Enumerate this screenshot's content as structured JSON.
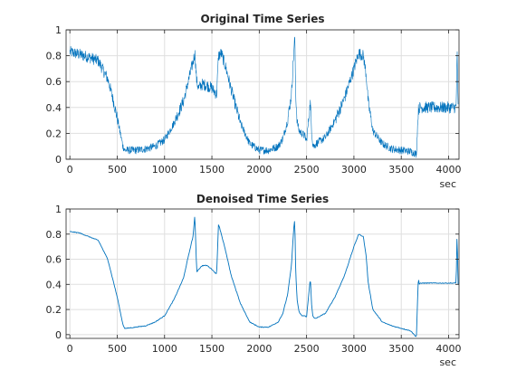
{
  "chart_data": [
    {
      "type": "line",
      "title": "Original Time Series",
      "xlabel": "sec",
      "ylabel": "",
      "xlim": [
        -40,
        4110
      ],
      "ylim": [
        0,
        1
      ],
      "xticks": [
        0,
        500,
        1000,
        1500,
        2000,
        2500,
        3000,
        3500,
        4000
      ],
      "yticks": [
        0,
        0.2,
        0.4,
        0.6,
        0.8,
        1
      ],
      "grid": true,
      "noise": "high",
      "series": [
        {
          "color": "#0072BD",
          "x": [
            0,
            100,
            200,
            300,
            400,
            450,
            500,
            560,
            580,
            600,
            700,
            800,
            900,
            1000,
            1100,
            1200,
            1250,
            1300,
            1320,
            1340,
            1360,
            1400,
            1450,
            1500,
            1550,
            1570,
            1600,
            1650,
            1700,
            1800,
            1900,
            2000,
            2100,
            2200,
            2250,
            2300,
            2340,
            2365,
            2375,
            2385,
            2400,
            2420,
            2450,
            2480,
            2500,
            2520,
            2540,
            2555,
            2565,
            2580,
            2600,
            2700,
            2800,
            2900,
            3000,
            3050,
            3100,
            3130,
            3150,
            3200,
            3300,
            3400,
            3500,
            3600,
            3660,
            3680,
            3690,
            3700,
            3800,
            3900,
            4000,
            4080,
            4090,
            4100
          ],
          "y": [
            0.83,
            0.81,
            0.79,
            0.76,
            0.62,
            0.48,
            0.32,
            0.1,
            0.07,
            0.07,
            0.07,
            0.08,
            0.1,
            0.15,
            0.28,
            0.45,
            0.6,
            0.75,
            0.82,
            0.6,
            0.55,
            0.58,
            0.57,
            0.55,
            0.5,
            0.8,
            0.82,
            0.7,
            0.55,
            0.28,
            0.12,
            0.07,
            0.07,
            0.1,
            0.16,
            0.3,
            0.5,
            0.82,
            0.95,
            0.5,
            0.3,
            0.22,
            0.2,
            0.18,
            0.14,
            0.3,
            0.44,
            0.2,
            0.12,
            0.1,
            0.12,
            0.17,
            0.3,
            0.47,
            0.7,
            0.82,
            0.8,
            0.65,
            0.45,
            0.22,
            0.12,
            0.08,
            0.07,
            0.06,
            0.04,
            0.38,
            0.4,
            0.4,
            0.4,
            0.4,
            0.4,
            0.4,
            0.85,
            0.4
          ]
        }
      ]
    },
    {
      "type": "line",
      "title": "Denoised Time Series",
      "xlabel": "sec",
      "ylabel": "",
      "xlim": [
        -40,
        4110
      ],
      "ylim": [
        -0.03,
        1
      ],
      "xticks": [
        0,
        500,
        1000,
        1500,
        2000,
        2500,
        3000,
        3500,
        4000
      ],
      "yticks": [
        0,
        0.2,
        0.4,
        0.6,
        0.8,
        1
      ],
      "grid": true,
      "noise": "low",
      "series": [
        {
          "color": "#0072BD",
          "x": [
            0,
            100,
            200,
            300,
            400,
            450,
            500,
            560,
            580,
            600,
            700,
            800,
            900,
            1000,
            1100,
            1200,
            1250,
            1300,
            1320,
            1340,
            1360,
            1400,
            1450,
            1500,
            1550,
            1570,
            1600,
            1650,
            1700,
            1800,
            1900,
            2000,
            2100,
            2200,
            2250,
            2300,
            2340,
            2365,
            2375,
            2385,
            2400,
            2420,
            2450,
            2480,
            2500,
            2520,
            2540,
            2555,
            2565,
            2580,
            2600,
            2700,
            2800,
            2900,
            3000,
            3050,
            3100,
            3130,
            3150,
            3200,
            3300,
            3400,
            3500,
            3600,
            3660,
            3680,
            3690,
            3700,
            3800,
            3900,
            4000,
            4080,
            4090,
            4100
          ],
          "y": [
            0.82,
            0.81,
            0.78,
            0.75,
            0.6,
            0.45,
            0.3,
            0.08,
            0.05,
            0.05,
            0.06,
            0.07,
            0.1,
            0.15,
            0.28,
            0.45,
            0.62,
            0.78,
            0.95,
            0.5,
            0.52,
            0.55,
            0.55,
            0.52,
            0.48,
            0.88,
            0.8,
            0.65,
            0.48,
            0.25,
            0.1,
            0.06,
            0.06,
            0.1,
            0.17,
            0.32,
            0.55,
            0.85,
            0.92,
            0.5,
            0.28,
            0.18,
            0.15,
            0.15,
            0.14,
            0.3,
            0.45,
            0.22,
            0.15,
            0.13,
            0.13,
            0.17,
            0.3,
            0.47,
            0.7,
            0.8,
            0.78,
            0.62,
            0.42,
            0.2,
            0.1,
            0.07,
            0.05,
            0.03,
            -0.02,
            0.45,
            0.4,
            0.41,
            0.41,
            0.41,
            0.41,
            0.41,
            0.83,
            0.4
          ]
        }
      ]
    }
  ]
}
